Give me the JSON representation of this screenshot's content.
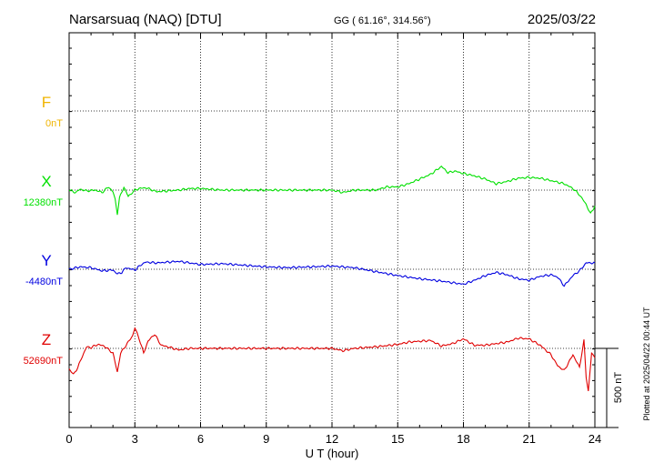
{
  "header": {
    "station": "Narsarsuaq (NAQ)  [DTU]",
    "coords": "GG ( 61.16°, 314.56°)",
    "date": "2025/03/22"
  },
  "side_note": "Plotted at 2025/04/22 00:44 UT",
  "chart_data": {
    "type": "line",
    "xlabel": "U T (hour)",
    "xlim": [
      0,
      24
    ],
    "xticks": [
      "0",
      "3",
      "6",
      "9",
      "12",
      "15",
      "18",
      "21",
      "24"
    ],
    "scale_bar_label": "500 nT",
    "scale_bar_nT": 500,
    "channels": [
      {
        "name": "F",
        "baseline": "0nT",
        "color": "#f0b400",
        "values": []
      },
      {
        "name": "X",
        "baseline": "12380nT",
        "color": "#00e000",
        "x": [
          0,
          0.3,
          0.5,
          0.8,
          1.2,
          1.5,
          1.8,
          2.0,
          2.1,
          2.2,
          2.3,
          2.5,
          2.7,
          3.0,
          3.2,
          3.5,
          4.0,
          4.5,
          5.0,
          5.5,
          6.0,
          7.0,
          8.0,
          9.0,
          10.0,
          11.0,
          11.5,
          12.0,
          12.5,
          13.0,
          14.0,
          14.5,
          15.0,
          15.5,
          16.0,
          16.5,
          17.0,
          17.3,
          17.6,
          18.0,
          18.5,
          19.0,
          19.5,
          20.0,
          20.5,
          21.0,
          21.5,
          22.0,
          22.3,
          22.6,
          23.0,
          23.3,
          23.6,
          23.8,
          24.0
        ],
        "values": [
          0,
          -15,
          5,
          -5,
          0,
          -15,
          20,
          -10,
          -60,
          -150,
          -50,
          20,
          -40,
          0,
          10,
          15,
          -10,
          -5,
          0,
          10,
          10,
          0,
          0,
          0,
          0,
          0,
          0,
          0,
          -15,
          0,
          0,
          20,
          20,
          40,
          70,
          100,
          150,
          110,
          120,
          105,
          90,
          70,
          40,
          55,
          75,
          80,
          75,
          60,
          50,
          40,
          10,
          -30,
          -90,
          -150,
          -100
        ]
      },
      {
        "name": "Y",
        "baseline": "-4480nT",
        "color": "#0000e0",
        "x": [
          0,
          0.5,
          1.0,
          1.5,
          2.0,
          2.2,
          2.4,
          2.6,
          3.0,
          3.3,
          3.5,
          4.0,
          5.0,
          6.0,
          7.0,
          8.0,
          9.0,
          10.0,
          11.0,
          12.0,
          13.0,
          14.0,
          15.0,
          16.0,
          17.0,
          17.5,
          18.0,
          18.5,
          19.0,
          19.5,
          20.0,
          20.5,
          21.0,
          21.5,
          22.0,
          22.3,
          22.6,
          23.0,
          23.3,
          23.6,
          24.0
        ],
        "values": [
          0,
          15,
          10,
          -10,
          -5,
          -30,
          -20,
          10,
          -5,
          30,
          45,
          40,
          50,
          30,
          35,
          25,
          15,
          10,
          15,
          20,
          10,
          -15,
          -40,
          -60,
          -75,
          -85,
          -95,
          -70,
          -40,
          -20,
          -35,
          -60,
          -70,
          -45,
          -35,
          -50,
          -105,
          -40,
          -10,
          40,
          40
        ]
      },
      {
        "name": "Z",
        "baseline": "52690nT",
        "color": "#e00000",
        "x": [
          0,
          0.2,
          0.4,
          0.6,
          0.8,
          1.0,
          1.3,
          1.6,
          2.0,
          2.2,
          2.35,
          2.5,
          2.7,
          2.9,
          3.0,
          3.2,
          3.4,
          3.6,
          3.9,
          4.2,
          4.5,
          5.0,
          5.5,
          6.0,
          7.0,
          8.0,
          9.0,
          10.0,
          11.0,
          12.0,
          12.5,
          13.0,
          14.0,
          15.0,
          15.5,
          16.0,
          16.5,
          17.0,
          17.5,
          18.0,
          18.5,
          19.0,
          19.5,
          20.0,
          20.5,
          21.0,
          21.5,
          22.0,
          22.3,
          22.6,
          23.0,
          23.3,
          23.5,
          23.6,
          23.7,
          23.85,
          24.0
        ],
        "values": [
          -130,
          -165,
          -120,
          -50,
          10,
          5,
          25,
          15,
          -30,
          -150,
          -30,
          0,
          40,
          80,
          130,
          60,
          -30,
          45,
          90,
          20,
          10,
          -10,
          0,
          0,
          0,
          0,
          0,
          0,
          0,
          0,
          -15,
          0,
          10,
          25,
          40,
          45,
          50,
          15,
          30,
          60,
          20,
          20,
          30,
          40,
          65,
          60,
          20,
          -40,
          -110,
          -140,
          -40,
          -120,
          50,
          -180,
          -270,
          -30,
          -60
        ]
      }
    ]
  }
}
